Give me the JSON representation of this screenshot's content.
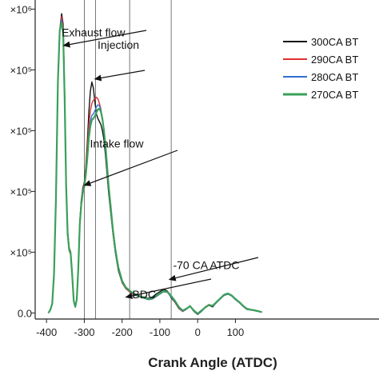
{
  "chart_data": {
    "type": "line",
    "title": "",
    "xlabel": "Crank Angle (ATDC)",
    "ylabel": "",
    "xlim": [
      -430,
      480
    ],
    "ylim": [
      -20000.0,
      1030000.0
    ],
    "x_ticks": [
      -400,
      -300,
      -200,
      -100,
      0,
      100
    ],
    "x_tick_labels": [
      "-400",
      "-300",
      "-200",
      "-100",
      "0",
      "100"
    ],
    "y_ticks": [
      0,
      200000.0,
      400000.0,
      600000.0,
      800000.0,
      1000000.0
    ],
    "y_tick_labels": [
      "0.0",
      "×10⁵",
      "×10⁵",
      "×10⁵",
      "×10⁵",
      "×10⁶"
    ],
    "grid": false,
    "legend_position": "top-right",
    "vertical_lines": [
      -300,
      -270,
      -180,
      -70
    ],
    "annotations": [
      {
        "text": "Exhaust flow",
        "x": -360,
        "y": 910000,
        "target_x": -355,
        "target_y": 880000
      },
      {
        "text": "Injection",
        "x": -265,
        "y": 870000,
        "target_x": -272,
        "target_y": 770000
      },
      {
        "text": "Intake flow",
        "x": -285,
        "y": 545000,
        "target_x": -300,
        "target_y": 420000
      },
      {
        "text": "BDC",
        "x": -173,
        "y": 48000,
        "target_x": -190,
        "target_y": 52000
      },
      {
        "text": "-70 CA ATDC",
        "x": -65,
        "y": 145000,
        "target_x": -75,
        "target_y": 110000
      }
    ],
    "series": [
      {
        "name": "300CA BT",
        "color": "#111111",
        "x": [
          -395,
          -390,
          -385,
          -380,
          -375,
          -370,
          -365,
          -360,
          -356,
          -352,
          -348,
          -344,
          -340,
          -336,
          -332,
          -328,
          -324,
          -320,
          -316,
          -312,
          -308,
          -304,
          -300,
          -296,
          -292,
          -288,
          -284,
          -280,
          -276,
          -272,
          -268,
          -264,
          -260,
          -256,
          -252,
          -248,
          -244,
          -240,
          -236,
          -230,
          -224,
          -218,
          -210,
          -200,
          -190,
          -180,
          -170,
          -160,
          -150,
          -140,
          -130,
          -120,
          -110,
          -100,
          -90,
          -80,
          -70,
          -60,
          -50,
          -40,
          -30,
          -20,
          -10,
          0,
          10,
          20,
          30,
          40,
          50,
          60,
          70,
          80,
          90,
          100,
          110,
          120,
          130,
          140,
          150,
          160,
          170
        ],
        "y": [
          0,
          10000,
          30000,
          130000,
          380000,
          760000,
          930000,
          985000,
          950000,
          720000,
          430000,
          270000,
          215000,
          200000,
          130000,
          40000,
          20000,
          45000,
          150000,
          300000,
          370000,
          410000,
          430000,
          480000,
          560000,
          660000,
          730000,
          760000,
          740000,
          695000,
          655000,
          640000,
          630000,
          620000,
          600000,
          570000,
          520000,
          460000,
          400000,
          330000,
          260000,
          200000,
          140000,
          100000,
          80000,
          70000,
          60000,
          58000,
          55000,
          52000,
          48000,
          52000,
          62000,
          70000,
          78000,
          72000,
          50000,
          35000,
          15000,
          5000,
          12000,
          22000,
          5000,
          -5000,
          5000,
          18000,
          25000,
          20000,
          35000,
          48000,
          60000,
          65000,
          58000,
          45000,
          35000,
          22000,
          12000,
          10000,
          8000,
          5000,
          2000
        ]
      },
      {
        "name": "290CA BT",
        "color": "#e03030",
        "x": [
          -395,
          -390,
          -385,
          -380,
          -375,
          -370,
          -365,
          -360,
          -356,
          -352,
          -348,
          -344,
          -340,
          -336,
          -332,
          -328,
          -324,
          -320,
          -316,
          -312,
          -308,
          -304,
          -300,
          -296,
          -292,
          -288,
          -284,
          -280,
          -276,
          -272,
          -268,
          -264,
          -260,
          -256,
          -252,
          -248,
          -244,
          -240,
          -236,
          -230,
          -224,
          -218,
          -210,
          -200,
          -190,
          -180,
          -170,
          -160,
          -150,
          -140,
          -130,
          -120,
          -110,
          -100,
          -90,
          -80,
          -70,
          -60,
          -50,
          -40,
          -30,
          -20,
          -10,
          0,
          10,
          20,
          30,
          40,
          50,
          60,
          70,
          80,
          90,
          100,
          110,
          120,
          130,
          140,
          150,
          160,
          170
        ],
        "y": [
          0,
          10000,
          30000,
          130000,
          380000,
          760000,
          930000,
          975000,
          940000,
          710000,
          425000,
          265000,
          212000,
          198000,
          128000,
          40000,
          20000,
          44000,
          148000,
          298000,
          365000,
          405000,
          425000,
          470000,
          540000,
          620000,
          665000,
          690000,
          700000,
          705000,
          710000,
          705000,
          690000,
          670000,
          640000,
          600000,
          545000,
          480000,
          415000,
          340000,
          265000,
          205000,
          145000,
          102000,
          80000,
          70000,
          60000,
          56000,
          52000,
          48000,
          44000,
          46000,
          54000,
          62000,
          70000,
          68000,
          52000,
          36000,
          16000,
          5000,
          12000,
          24000,
          6000,
          -4000,
          6000,
          20000,
          28000,
          22000,
          34000,
          46000,
          58000,
          62000,
          56000,
          44000,
          34000,
          22000,
          12000,
          10000,
          8000,
          5000,
          2000
        ]
      },
      {
        "name": "280CA BT",
        "color": "#2f6fd0",
        "x": [
          -395,
          -390,
          -385,
          -380,
          -375,
          -370,
          -365,
          -360,
          -356,
          -352,
          -348,
          -344,
          -340,
          -336,
          -332,
          -328,
          -324,
          -320,
          -316,
          -312,
          -308,
          -304,
          -300,
          -296,
          -292,
          -288,
          -284,
          -280,
          -276,
          -272,
          -268,
          -264,
          -260,
          -256,
          -252,
          -248,
          -244,
          -240,
          -236,
          -230,
          -224,
          -218,
          -210,
          -200,
          -190,
          -180,
          -170,
          -160,
          -150,
          -140,
          -130,
          -120,
          -110,
          -100,
          -90,
          -80,
          -70,
          -60,
          -50,
          -40,
          -30,
          -20,
          -10,
          0,
          10,
          20,
          30,
          40,
          50,
          60,
          70,
          80,
          90,
          100,
          110,
          120,
          130,
          140,
          150,
          160,
          170
        ],
        "y": [
          0,
          10000,
          30000,
          130000,
          380000,
          760000,
          930000,
          965000,
          930000,
          705000,
          422000,
          262000,
          210000,
          196000,
          126000,
          40000,
          20000,
          44000,
          146000,
          295000,
          360000,
          400000,
          420000,
          460000,
          520000,
          590000,
          630000,
          650000,
          655000,
          665000,
          678000,
          685000,
          682000,
          668000,
          640000,
          600000,
          548000,
          485000,
          420000,
          345000,
          270000,
          208000,
          148000,
          104000,
          82000,
          72000,
          62000,
          56000,
          52000,
          48000,
          44000,
          46000,
          54000,
          62000,
          70000,
          68000,
          52000,
          38000,
          18000,
          6000,
          12000,
          22000,
          6000,
          -4000,
          6000,
          18000,
          26000,
          22000,
          34000,
          46000,
          58000,
          62000,
          56000,
          44000,
          34000,
          22000,
          12000,
          10000,
          8000,
          5000,
          2000
        ]
      },
      {
        "name": "270CA BT",
        "color": "#3aa05a",
        "x": [
          -395,
          -390,
          -385,
          -380,
          -375,
          -370,
          -365,
          -360,
          -356,
          -352,
          -348,
          -344,
          -340,
          -336,
          -332,
          -328,
          -324,
          -320,
          -316,
          -312,
          -308,
          -304,
          -300,
          -296,
          -292,
          -288,
          -284,
          -280,
          -276,
          -272,
          -268,
          -264,
          -260,
          -256,
          -252,
          -248,
          -244,
          -240,
          -236,
          -230,
          -224,
          -218,
          -210,
          -200,
          -190,
          -180,
          -170,
          -160,
          -150,
          -140,
          -130,
          -120,
          -110,
          -100,
          -90,
          -80,
          -70,
          -60,
          -50,
          -40,
          -30,
          -20,
          -10,
          0,
          10,
          20,
          30,
          40,
          50,
          60,
          70,
          80,
          90,
          100,
          110,
          120,
          130,
          140,
          150,
          160,
          170
        ],
        "y": [
          0,
          10000,
          30000,
          130000,
          380000,
          760000,
          930000,
          955000,
          920000,
          700000,
          420000,
          260000,
          208000,
          194000,
          124000,
          40000,
          20000,
          44000,
          145000,
          292000,
          355000,
          395000,
          415000,
          455000,
          510000,
          575000,
          615000,
          635000,
          640000,
          648000,
          660000,
          670000,
          672000,
          662000,
          638000,
          600000,
          550000,
          488000,
          422000,
          348000,
          272000,
          210000,
          150000,
          106000,
          84000,
          74000,
          64000,
          58000,
          54000,
          50000,
          46000,
          48000,
          56000,
          64000,
          72000,
          70000,
          56000,
          40000,
          20000,
          8000,
          14000,
          22000,
          8000,
          -2000,
          8000,
          18000,
          26000,
          24000,
          36000,
          48000,
          60000,
          64000,
          58000,
          46000,
          36000,
          24000,
          14000,
          11000,
          9000,
          6000,
          3000
        ]
      }
    ]
  }
}
